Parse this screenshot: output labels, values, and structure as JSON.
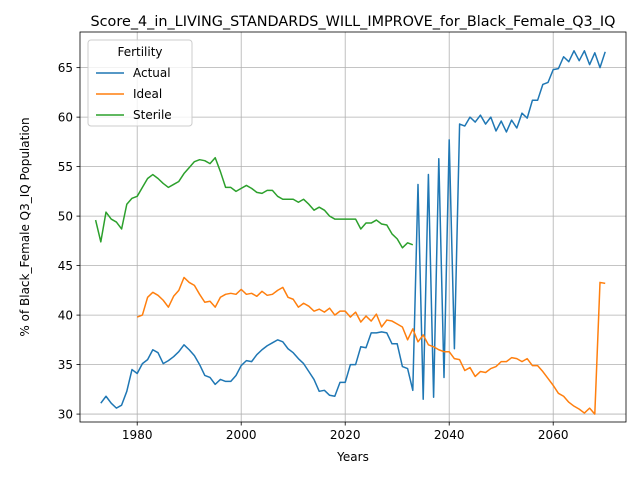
{
  "chart_data": {
    "type": "line",
    "title": "Score_4_in_LIVING_STANDARDS_WILL_IMPROVE_for_Black_Female_Q3_IQ",
    "xlabel": "Years",
    "ylabel": "% of Black_Female Q3_IQ Population",
    "xlim": [
      1969,
      2074
    ],
    "ylim": [
      29.2,
      68.6
    ],
    "xticks": [
      1980,
      2000,
      2020,
      2040,
      2060
    ],
    "yticks": [
      30,
      35,
      40,
      45,
      50,
      55,
      60,
      65
    ],
    "grid": true,
    "legend": {
      "title": "Fertility",
      "placement": "top-left"
    },
    "series": [
      {
        "name": "Actual",
        "color": "#1f77b4",
        "x": [
          1973,
          1974,
          1975,
          1976,
          1977,
          1978,
          1979,
          1980,
          1981,
          1982,
          1983,
          1984,
          1985,
          1986,
          1987,
          1988,
          1989,
          1990,
          1991,
          1992,
          1993,
          1994,
          1995,
          1996,
          1997,
          1998,
          1999,
          2000,
          2001,
          2002,
          2003,
          2004,
          2005,
          2006,
          2007,
          2008,
          2009,
          2010,
          2011,
          2012,
          2013,
          2014,
          2015,
          2016,
          2017,
          2018,
          2019,
          2020,
          2021,
          2022,
          2023,
          2024,
          2025,
          2026,
          2027,
          2028,
          2029,
          2030,
          2031,
          2032,
          2033,
          2034,
          2035,
          2036,
          2037,
          2038,
          2039,
          2040,
          2041,
          2042,
          2043,
          2044,
          2045,
          2046,
          2047,
          2048,
          2049,
          2050,
          2051,
          2052,
          2053,
          2054,
          2055,
          2056,
          2057,
          2058,
          2059,
          2060,
          2061,
          2062,
          2063,
          2064,
          2065,
          2066,
          2067,
          2068,
          2069,
          2070
        ],
        "values": [
          31.1,
          31.8,
          31.1,
          30.6,
          30.9,
          32.3,
          34.5,
          34.1,
          35.1,
          35.5,
          36.5,
          36.2,
          35.1,
          35.4,
          35.8,
          36.3,
          37.0,
          36.5,
          35.9,
          35.0,
          33.9,
          33.7,
          33.0,
          33.5,
          33.3,
          33.3,
          33.9,
          34.9,
          35.4,
          35.3,
          36.0,
          36.5,
          36.9,
          37.2,
          37.5,
          37.3,
          36.6,
          36.2,
          35.6,
          35.1,
          34.3,
          33.5,
          32.3,
          32.4,
          31.9,
          31.8,
          33.2,
          33.2,
          35.0,
          35.0,
          36.8,
          36.7,
          38.2,
          38.2,
          38.3,
          38.2,
          37.1,
          37.1,
          34.8,
          34.6,
          32.4,
          53.2,
          31.5,
          54.2,
          31.7,
          55.8,
          33.7,
          57.7,
          36.6,
          59.3,
          59.1,
          60.0,
          59.5,
          60.2,
          59.3,
          60.0,
          58.6,
          59.6,
          58.5,
          59.7,
          58.9,
          60.4,
          59.9,
          61.7,
          61.7,
          63.3,
          63.5,
          64.8,
          64.9,
          66.1,
          65.6,
          66.7,
          65.7,
          66.7,
          65.3,
          66.5,
          65.0,
          66.6
        ]
      },
      {
        "name": "Ideal",
        "color": "#ff7f0e",
        "x": [
          1980,
          1981,
          1982,
          1983,
          1984,
          1985,
          1986,
          1987,
          1988,
          1989,
          1990,
          1991,
          1992,
          1993,
          1994,
          1995,
          1996,
          1997,
          1998,
          1999,
          2000,
          2001,
          2002,
          2003,
          2004,
          2005,
          2006,
          2007,
          2008,
          2009,
          2010,
          2011,
          2012,
          2013,
          2014,
          2015,
          2016,
          2017,
          2018,
          2019,
          2020,
          2021,
          2022,
          2023,
          2024,
          2025,
          2026,
          2027,
          2028,
          2029,
          2030,
          2031,
          2032,
          2033,
          2034,
          2035,
          2036,
          2037,
          2038,
          2039,
          2040,
          2041,
          2042,
          2043,
          2044,
          2045,
          2046,
          2047,
          2048,
          2049,
          2050,
          2051,
          2052,
          2053,
          2054,
          2055,
          2056,
          2057,
          2058,
          2059,
          2060,
          2061,
          2062,
          2063,
          2064,
          2065,
          2066,
          2067,
          2068,
          2069,
          2070
        ],
        "values": [
          39.8,
          40.0,
          41.8,
          42.3,
          42.0,
          41.5,
          40.8,
          41.9,
          42.5,
          43.8,
          43.3,
          43.0,
          42.1,
          41.3,
          41.4,
          40.8,
          41.8,
          42.1,
          42.2,
          42.1,
          42.6,
          42.1,
          42.2,
          41.9,
          42.4,
          42.0,
          42.1,
          42.5,
          42.8,
          41.8,
          41.6,
          40.8,
          41.2,
          40.9,
          40.4,
          40.6,
          40.3,
          40.7,
          40.0,
          40.4,
          40.4,
          39.8,
          40.3,
          39.3,
          39.9,
          39.4,
          40.1,
          38.8,
          39.5,
          39.4,
          39.1,
          38.8,
          37.5,
          38.6,
          37.3,
          38.0,
          37.0,
          36.8,
          36.5,
          36.3,
          36.3,
          35.6,
          35.5,
          34.4,
          34.7,
          33.8,
          34.3,
          34.2,
          34.6,
          34.8,
          35.3,
          35.3,
          35.7,
          35.6,
          35.3,
          35.6,
          34.9,
          34.9,
          34.3,
          33.6,
          32.9,
          32.1,
          31.8,
          31.2,
          30.8,
          30.5,
          30.1,
          30.6,
          30.0,
          43.3,
          43.2
        ]
      },
      {
        "name": "Sterile",
        "color": "#2ca02c",
        "x": [
          1972,
          1973,
          1974,
          1975,
          1976,
          1977,
          1978,
          1979,
          1980,
          1981,
          1982,
          1983,
          1984,
          1985,
          1986,
          1987,
          1988,
          1989,
          1990,
          1991,
          1992,
          1993,
          1994,
          1995,
          1996,
          1997,
          1998,
          1999,
          2000,
          2001,
          2002,
          2003,
          2004,
          2005,
          2006,
          2007,
          2008,
          2009,
          2010,
          2011,
          2012,
          2013,
          2014,
          2015,
          2016,
          2017,
          2018,
          2019,
          2020,
          2021,
          2022,
          2023,
          2024,
          2025,
          2026,
          2027,
          2028,
          2029,
          2030,
          2031,
          2032,
          2033
        ],
        "values": [
          49.6,
          47.4,
          50.4,
          49.7,
          49.4,
          48.7,
          51.2,
          51.8,
          52.0,
          52.9,
          53.8,
          54.2,
          53.8,
          53.3,
          52.9,
          53.2,
          53.5,
          54.3,
          54.9,
          55.5,
          55.7,
          55.6,
          55.3,
          55.9,
          54.5,
          52.9,
          52.9,
          52.5,
          52.8,
          53.1,
          52.8,
          52.4,
          52.3,
          52.6,
          52.6,
          52.0,
          51.7,
          51.7,
          51.7,
          51.4,
          51.7,
          51.2,
          50.6,
          50.9,
          50.6,
          50.0,
          49.7,
          49.7,
          49.7,
          49.7,
          49.7,
          48.7,
          49.3,
          49.3,
          49.6,
          49.2,
          49.1,
          48.2,
          47.7,
          46.8,
          47.3,
          47.1
        ]
      }
    ]
  }
}
